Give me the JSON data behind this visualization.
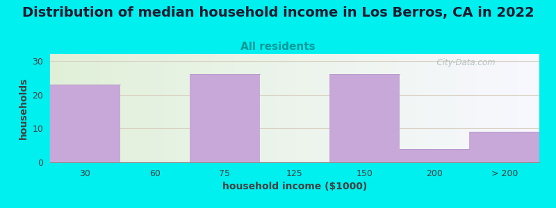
{
  "title": "Distribution of median household income in Los Berros, CA in 2022",
  "subtitle": "All residents",
  "xlabel": "household income ($1000)",
  "ylabel": "households",
  "bar_labels": [
    "30",
    "60",
    "75",
    "125",
    "150",
    "200",
    "> 200"
  ],
  "bar_values": [
    23,
    0,
    26,
    0,
    26,
    4,
    9
  ],
  "bar_color": "#C8A8D8",
  "bar_edge_color": "#B090C8",
  "ylim": [
    0,
    32
  ],
  "yticks": [
    0,
    10,
    20,
    30
  ],
  "background_color": "#00EFEF",
  "plot_bg_left_color": "#E0F0D8",
  "plot_bg_right_color": "#F8F8FF",
  "grid_color": "#D8D0C0",
  "title_fontsize": 14,
  "subtitle_fontsize": 11,
  "subtitle_color": "#009999",
  "axis_label_fontsize": 10,
  "tick_label_fontsize": 9,
  "watermark_text": "  City-Data.com",
  "watermark_color": "#A8B8B8"
}
